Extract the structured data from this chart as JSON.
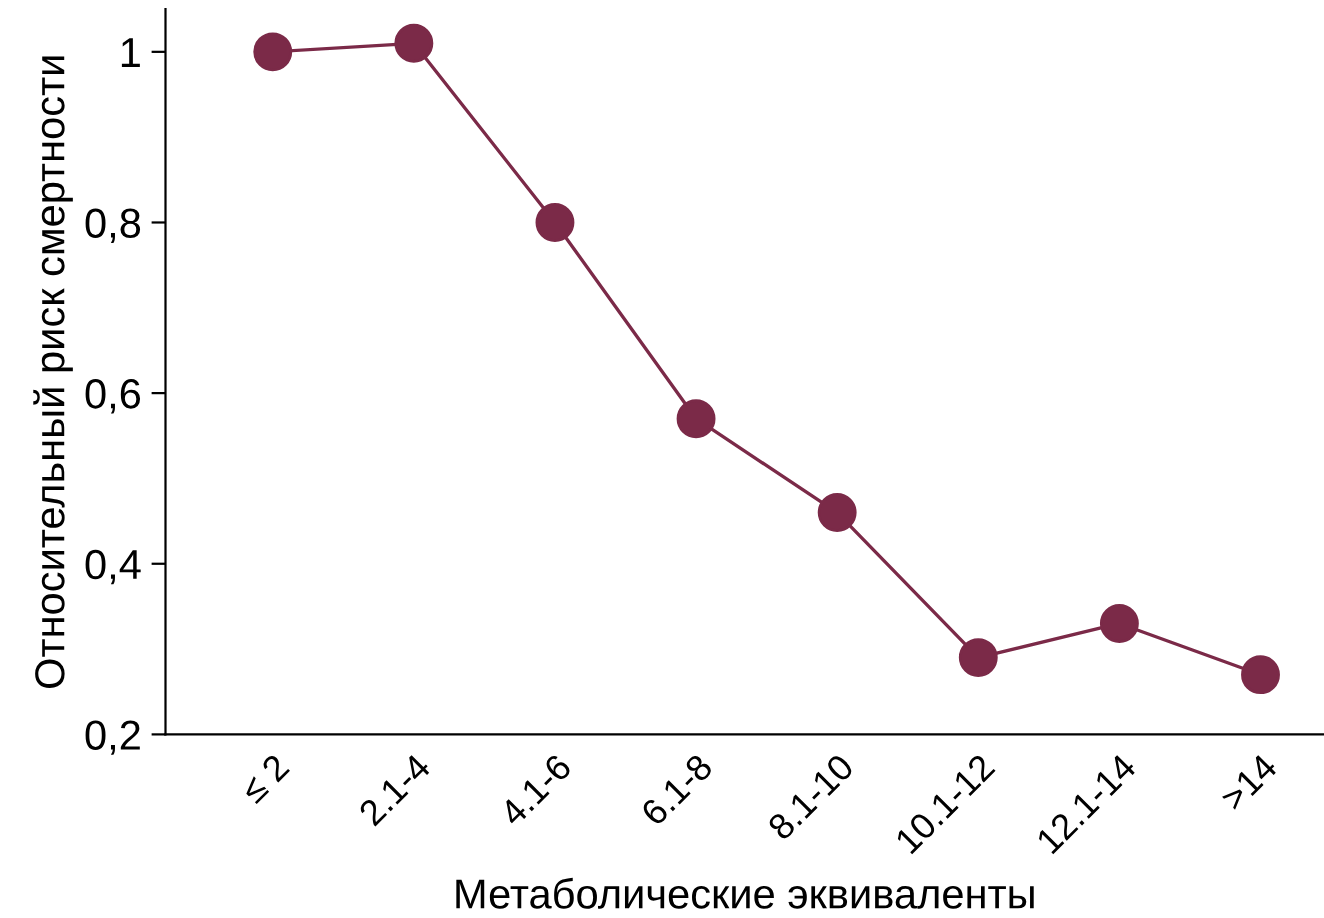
{
  "chart_data": {
    "type": "line",
    "xlabel": "Метаболические эквиваленты",
    "ylabel": "Относительный риск смертности",
    "categories": [
      "≤ 2",
      "2.1-4",
      "4.1-6",
      "6.1-8",
      "8.1-10",
      "10.1-12",
      "12.1-14",
      ">14"
    ],
    "series": [
      {
        "color": "#7b2a48",
        "values": [
          1.0,
          1.01,
          0.8,
          0.57,
          0.46,
          0.29,
          0.33,
          0.27
        ]
      }
    ],
    "ylim": [
      0.2,
      1.05
    ],
    "yticks": [
      {
        "value": 0.2,
        "label": "0,2"
      },
      {
        "value": 0.4,
        "label": "0,4"
      },
      {
        "value": 0.6,
        "label": "0,6"
      },
      {
        "value": 0.8,
        "label": "0,8"
      },
      1
    ],
    "marker": "circle",
    "line_style": "solid",
    "grid": false,
    "legend": false
  }
}
